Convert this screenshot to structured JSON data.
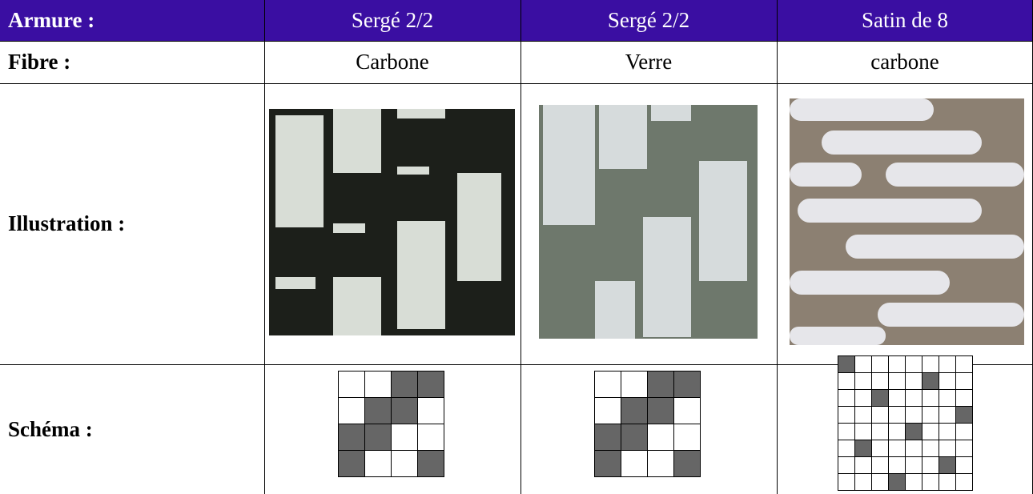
{
  "table": {
    "header": [
      "Armure :",
      "Sergé 2/2",
      "Sergé 2/2",
      "Satin de 8"
    ],
    "rows": [
      [
        "Fibre :",
        "Carbone",
        "Verre",
        "carbone"
      ],
      [
        "Illustration :"
      ],
      [
        "Schéma :"
      ]
    ]
  }
}
